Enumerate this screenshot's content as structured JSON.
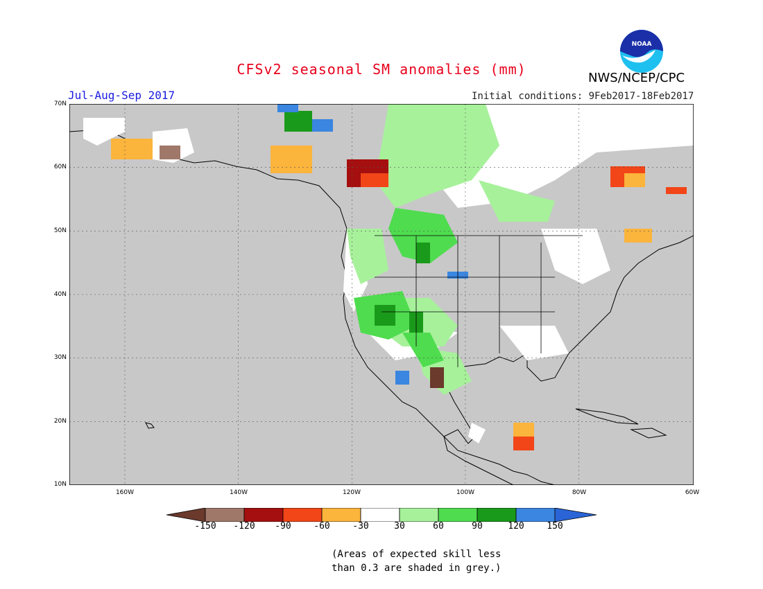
{
  "header": {
    "title": "CFSv2 seasonal SM anomalies (mm)",
    "period": "Jul-Aug-Sep 2017",
    "initial_conditions": "Initial conditions: 9Feb2017-18Feb2017",
    "agency": "NWS/NCEP/CPC",
    "logo_text": "NOAA"
  },
  "map": {
    "lat_labels": [
      "70N",
      "60N",
      "50N",
      "40N",
      "30N",
      "20N",
      "10N"
    ],
    "lon_labels": [
      "160W",
      "140W",
      "120W",
      "100W",
      "80W",
      "60W"
    ],
    "background_color": "#c8c8c8"
  },
  "legend": {
    "tick_labels": [
      "-150",
      "-120",
      "-90",
      "-60",
      "-30",
      "30",
      "60",
      "90",
      "120",
      "150"
    ],
    "colors": [
      "#6b3a2c",
      "#a0786a",
      "#a50f0f",
      "#f24518",
      "#fbb43c",
      "#ffffff",
      "#a7f19b",
      "#4fdc4f",
      "#1a9a1a",
      "#3a86e0",
      "#2a64d6"
    ]
  },
  "notes": {
    "line1": "(Areas of expected skill less",
    "line2": "than 0.3 are shaded in grey.)"
  }
}
